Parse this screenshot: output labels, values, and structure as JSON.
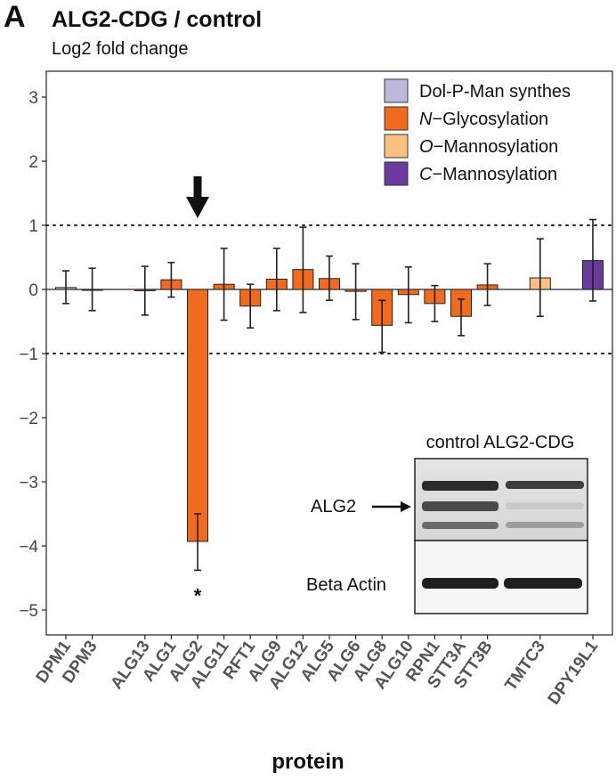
{
  "panel_label": "A",
  "chart_data": {
    "type": "bar",
    "title": "ALG2-CDG / control",
    "subtitle": "Log2 fold change",
    "xlabel": "protein",
    "ylabel": "",
    "ylim": [
      -5.5,
      3.3
    ],
    "yticks": [
      3,
      2,
      1,
      0,
      -1,
      -2,
      -3,
      -4,
      -5
    ],
    "yticklabels": [
      "3",
      "2",
      "1",
      "0",
      "−1",
      "−2",
      "−3",
      "−4",
      "−5"
    ],
    "reference_lines": [
      1,
      -1
    ],
    "grid": false,
    "legend_position": "top-right",
    "legend": [
      {
        "label": "Dol-P-Man synthes",
        "color": "#bcb9dc"
      },
      {
        "label_italic": "N",
        "label_rest": "−Glycosylation",
        "color": "#f26a1b"
      },
      {
        "label_italic": "O",
        "label_rest": "−Mannosylation",
        "color": "#fbc07e"
      },
      {
        "label_italic": "C",
        "label_rest": "−Mannosylation",
        "color": "#6a3a9c"
      }
    ],
    "categories": [
      "DPM1",
      "DPM3",
      "ALG13",
      "ALG1",
      "ALG2",
      "ALG11",
      "RFT1",
      "ALG9",
      "ALG12",
      "ALG5",
      "ALG6",
      "ALG8",
      "ALG10",
      "RPN1",
      "STT3A",
      "STT3B",
      "TMTC3",
      "DPY19L1"
    ],
    "slots": [
      0,
      1,
      3,
      4,
      5,
      6,
      7,
      8,
      9,
      10,
      11,
      12,
      13,
      14,
      15,
      16,
      18,
      20
    ],
    "values": [
      0.03,
      0.0,
      -0.02,
      0.15,
      -3.93,
      0.08,
      -0.26,
      0.16,
      0.31,
      0.17,
      -0.03,
      -0.56,
      -0.08,
      -0.22,
      -0.42,
      0.07,
      0.18,
      0.45
    ],
    "err_low": [
      -0.22,
      -0.33,
      -0.4,
      -0.12,
      -4.38,
      -0.48,
      -0.6,
      -0.33,
      -0.36,
      -0.17,
      -0.47,
      -0.98,
      -0.52,
      -0.5,
      -0.72,
      -0.25,
      -0.42,
      -0.18
    ],
    "err_high": [
      0.29,
      0.33,
      0.36,
      0.42,
      -3.5,
      0.64,
      0.08,
      0.64,
      0.97,
      0.52,
      0.4,
      -0.17,
      0.35,
      0.06,
      -0.15,
      0.4,
      0.79,
      1.09
    ],
    "groups": [
      "dol",
      "dol",
      "n",
      "n",
      "n",
      "n",
      "n",
      "n",
      "n",
      "n",
      "n",
      "n",
      "n",
      "n",
      "n",
      "n",
      "o",
      "c"
    ],
    "group_colors": {
      "dol": "#bcb9dc",
      "n": "#f26a1b",
      "o": "#fbc07e",
      "c": "#6a3a9c"
    },
    "significance": {
      "category": "ALG2",
      "marker": "*"
    },
    "highlight_arrow_category": "ALG2"
  },
  "inset_blot": {
    "column_labels": "control ALG2-CDG",
    "row1_label": "ALG2",
    "row2_label": "Beta Actin"
  }
}
